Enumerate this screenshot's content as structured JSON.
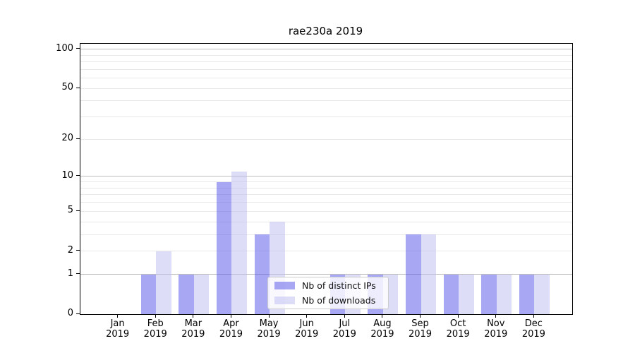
{
  "chart_data": {
    "type": "bar",
    "title": "rae230a 2019",
    "x": {
      "months": [
        "Jan",
        "Feb",
        "Mar",
        "Apr",
        "May",
        "Jun",
        "Jul",
        "Aug",
        "Sep",
        "Oct",
        "Nov",
        "Dec"
      ],
      "year": "2019"
    },
    "series": [
      {
        "name": "Nb of distinct IPs",
        "color": "rgba(79,79,231,0.5)",
        "values": [
          0,
          1,
          1,
          9,
          3,
          0,
          1,
          1,
          3,
          1,
          1,
          1
        ]
      },
      {
        "name": "Nb of downloads",
        "color": "rgba(187,187,241,0.5)",
        "values": [
          0,
          2,
          1,
          11,
          4,
          0,
          1,
          1,
          3,
          1,
          1,
          1
        ]
      }
    ],
    "y_axis": {
      "scale": "log1p",
      "ylim": [
        0,
        110
      ],
      "tick_values": [
        100,
        50,
        20,
        10,
        5,
        2,
        1,
        0
      ],
      "tick_labels": [
        "100",
        "50",
        "20",
        "10",
        "5",
        "2",
        "1",
        "0"
      ],
      "major_gridlines": [
        1,
        10,
        100
      ],
      "minor_gridlines": [
        2,
        3,
        4,
        5,
        6,
        7,
        8,
        9,
        20,
        30,
        40,
        50,
        60,
        70,
        80,
        90
      ]
    },
    "legend": {
      "position": "lower center"
    },
    "layout": {
      "bar_group_width_fraction": 0.8
    },
    "grid": true,
    "colors": {
      "major_grid": "#bdbdbd",
      "minor_grid": "#e9e9e9",
      "spine": "#000000",
      "background": "#ffffff"
    }
  }
}
